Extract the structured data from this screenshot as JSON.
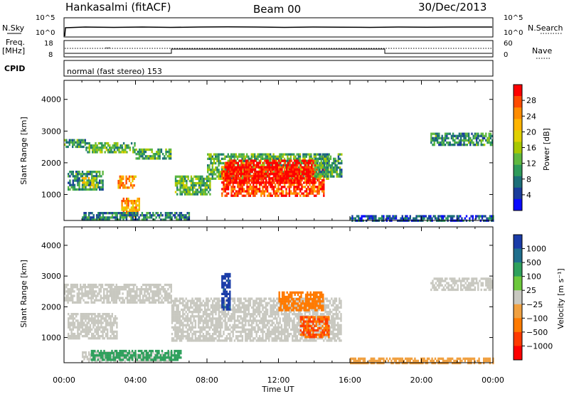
{
  "header": {
    "station": "Hankasalmi (fitACF)",
    "beam": "Beam 00",
    "date": "30/Dec/2013"
  },
  "param_panel": {
    "nsky_label": "N.Sky",
    "nsearch_label": "N.Search",
    "freq_label": "Freq.",
    "freq_unit": "[MHz]",
    "nave_label": "Nave",
    "cpid_label": "CPID",
    "cpid_text": "normal (fast stereo) 153",
    "nsky_ticks": [
      "10^5",
      "10^0"
    ],
    "nsearch_ticks": [
      "10^5",
      "10^0"
    ],
    "freq_ticks": [
      "18",
      "8"
    ],
    "nave_ticks": [
      "60",
      "0"
    ]
  },
  "colorbars": {
    "power": {
      "label": "Power [dB]",
      "ticks": [
        "28",
        "24",
        "20",
        "16",
        "12",
        "8",
        "4"
      ],
      "colors": [
        "#ff0000",
        "#ff4a00",
        "#ff8c00",
        "#ffb400",
        "#e0d000",
        "#a8c800",
        "#5fb840",
        "#2e9a5a",
        "#1c6e78",
        "#1a3c9c",
        "#0a0aff"
      ]
    },
    "velocity": {
      "label": "Velocity [m s⁻¹]",
      "ticks": [
        "1000",
        "500",
        "100",
        "25",
        "−25",
        "−100",
        "−500",
        "−1000"
      ],
      "colors": [
        "#1a3ca8",
        "#1f6e8c",
        "#2ea05c",
        "#6cc83c",
        "#c8c8c0",
        "#f0a040",
        "#ff7a00",
        "#ff3a00",
        "#ff0000"
      ]
    }
  },
  "axes": {
    "ylabel": "Slant Range [km]",
    "xlabel": "Time UT",
    "x_ticks": [
      "00:00",
      "04:00",
      "08:00",
      "12:00",
      "16:00",
      "20:00",
      "00:00"
    ],
    "y_ticks": [
      "4000",
      "3000",
      "2000",
      "1000"
    ]
  },
  "chart_data": [
    {
      "type": "heatmap",
      "title": "",
      "ylabel": "Slant Range [km]",
      "xlabel": "",
      "quantity": "Power [dB]",
      "x_range_hours": [
        0,
        24
      ],
      "ylim": [
        180,
        4600
      ],
      "color_range": [
        0,
        30
      ],
      "regions": [
        {
          "t": [
            0.0,
            1.2
          ],
          "r": [
            2500,
            2750
          ],
          "v": 10
        },
        {
          "t": [
            1.2,
            4.0
          ],
          "r": [
            2350,
            2650
          ],
          "v": 12
        },
        {
          "t": [
            4.0,
            6.0
          ],
          "r": [
            2150,
            2450
          ],
          "v": 11
        },
        {
          "t": [
            0.2,
            2.2
          ],
          "r": [
            1150,
            1750
          ],
          "v": 9
        },
        {
          "t": [
            1.0,
            1.8
          ],
          "r": [
            1250,
            1550
          ],
          "v": 17
        },
        {
          "t": [
            3.0,
            4.0
          ],
          "r": [
            1200,
            1600
          ],
          "v": 22
        },
        {
          "t": [
            3.2,
            4.2
          ],
          "r": [
            300,
            900
          ],
          "v": 22
        },
        {
          "t": [
            1.0,
            7.0
          ],
          "r": [
            200,
            450
          ],
          "v": 8
        },
        {
          "t": [
            6.2,
            8.2
          ],
          "r": [
            1000,
            1600
          ],
          "v": 12
        },
        {
          "t": [
            8.0,
            14.8
          ],
          "r": [
            1500,
            2300
          ],
          "v": 12
        },
        {
          "t": [
            8.8,
            14.5
          ],
          "r": [
            950,
            1900
          ],
          "v": 26
        },
        {
          "t": [
            9.0,
            14.0
          ],
          "r": [
            1400,
            2100
          ],
          "v": 30
        },
        {
          "t": [
            14.0,
            15.5
          ],
          "r": [
            1600,
            2300
          ],
          "v": 10
        },
        {
          "t": [
            20.5,
            24.0
          ],
          "r": [
            2550,
            2950
          ],
          "v": 9
        },
        {
          "t": [
            16.0,
            24.0
          ],
          "r": [
            200,
            350
          ],
          "v": 5
        }
      ]
    },
    {
      "type": "heatmap",
      "title": "",
      "ylabel": "Slant Range [km]",
      "xlabel": "Time UT",
      "quantity": "Velocity [m s⁻¹]",
      "x_range_hours": [
        0,
        24
      ],
      "ylim": [
        180,
        4600
      ],
      "color_range": [
        -1000,
        1000
      ],
      "regions": [
        {
          "t": [
            0.0,
            6.0
          ],
          "r": [
            2150,
            2750
          ],
          "v": 0
        },
        {
          "t": [
            0.2,
            3.0
          ],
          "r": [
            1000,
            1800
          ],
          "v": 0
        },
        {
          "t": [
            1.0,
            6.0
          ],
          "r": [
            250,
            550
          ],
          "v": 0
        },
        {
          "t": [
            6.0,
            15.5
          ],
          "r": [
            900,
            2300
          ],
          "v": 0
        },
        {
          "t": [
            8.8,
            9.3
          ],
          "r": [
            1900,
            3100
          ],
          "v": 1000
        },
        {
          "t": [
            12.0,
            14.5
          ],
          "r": [
            1900,
            2500
          ],
          "v": -150
        },
        {
          "t": [
            13.2,
            14.8
          ],
          "r": [
            1000,
            1700
          ],
          "v": -300
        },
        {
          "t": [
            20.5,
            24.0
          ],
          "r": [
            2550,
            2950
          ],
          "v": 0
        },
        {
          "t": [
            1.5,
            6.5
          ],
          "r": [
            300,
            600
          ],
          "v": 150
        },
        {
          "t": [
            16.0,
            24.0
          ],
          "r": [
            200,
            350
          ],
          "v": -60
        }
      ]
    }
  ]
}
